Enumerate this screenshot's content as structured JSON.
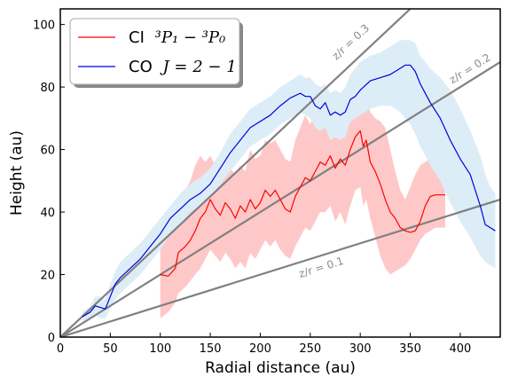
{
  "chart_data": {
    "type": "line",
    "xlabel": "Radial distance (au)",
    "ylabel": "Height (au)",
    "xlim": [
      0,
      440
    ],
    "ylim": [
      0,
      105
    ],
    "xticks": [
      0,
      50,
      100,
      150,
      200,
      250,
      300,
      350,
      400
    ],
    "yticks": [
      0,
      20,
      40,
      60,
      80,
      100
    ],
    "grid": false,
    "legend_position": "top-left",
    "series": [
      {
        "name": "CI",
        "name_math": "³P₁ − ³P₀",
        "color": "#ff0000",
        "band_color": "#ffc8c8",
        "x": [
          100,
          108,
          115,
          118,
          125,
          130,
          135,
          140,
          145,
          150,
          155,
          160,
          165,
          170,
          175,
          180,
          185,
          190,
          195,
          200,
          205,
          210,
          215,
          220,
          225,
          230,
          235,
          240,
          245,
          250,
          255,
          260,
          265,
          270,
          275,
          280,
          285,
          290,
          295,
          300,
          303,
          306,
          310,
          315,
          320,
          325,
          330,
          335,
          340,
          345,
          350,
          355,
          360,
          365,
          370,
          375,
          380,
          385
        ],
        "y": [
          20,
          19.5,
          22,
          27,
          29,
          31,
          34,
          38,
          40,
          44,
          41,
          39,
          43,
          41,
          38,
          42,
          40,
          44,
          41,
          43,
          47,
          45,
          47,
          44,
          41,
          40,
          45,
          48,
          51,
          50,
          53,
          56,
          55,
          58,
          54,
          57,
          55,
          60,
          64,
          66,
          61,
          63,
          56,
          53,
          49,
          44,
          40,
          38,
          35,
          34,
          33.5,
          34,
          37,
          42,
          45,
          45.5,
          45.5,
          45.5
        ],
        "band_low": [
          6,
          8,
          11,
          14,
          16,
          18,
          20,
          22,
          25,
          28,
          26,
          24,
          27,
          25,
          22,
          24,
          22,
          27,
          25,
          28,
          31,
          29,
          31,
          28,
          26,
          25,
          29,
          32,
          35,
          34,
          37,
          40,
          40,
          42,
          37,
          40,
          36,
          42,
          47,
          48,
          42,
          44,
          38,
          32,
          26,
          22,
          20,
          21,
          22,
          23,
          25,
          28,
          31,
          33,
          34,
          35,
          35,
          35
        ],
        "band_high": [
          33,
          32,
          35,
          41,
          47,
          50,
          55,
          58,
          56,
          58,
          55,
          52,
          56,
          54,
          52,
          55,
          53,
          60,
          57,
          58,
          63,
          62,
          63,
          60,
          57,
          56,
          63,
          67,
          71,
          68,
          72,
          72,
          70,
          76,
          72,
          75,
          74,
          80,
          83,
          84,
          79,
          80,
          72,
          70,
          69,
          67,
          60,
          53,
          47,
          44,
          48,
          52,
          55,
          56,
          57,
          57,
          57,
          57
        ]
      },
      {
        "name": "CO",
        "name_math": "J = 2 − 1",
        "color": "#0000dd",
        "band_color": "#dcedf7",
        "x": [
          22,
          30,
          35,
          40,
          45,
          50,
          55,
          60,
          70,
          80,
          90,
          100,
          110,
          120,
          130,
          140,
          150,
          160,
          170,
          180,
          190,
          200,
          210,
          220,
          230,
          240,
          245,
          250,
          255,
          260,
          265,
          270,
          275,
          280,
          285,
          290,
          295,
          300,
          310,
          320,
          330,
          340,
          345,
          350,
          355,
          360,
          370,
          380,
          390,
          400,
          410,
          420,
          425,
          430,
          435
        ],
        "y": [
          6.5,
          8,
          10,
          9.5,
          9,
          13,
          17,
          19,
          22,
          25,
          29,
          33,
          38,
          41,
          44,
          46,
          49,
          54,
          59,
          63,
          67,
          69,
          71,
          74,
          76.5,
          78,
          77,
          77,
          74,
          73,
          75,
          71,
          72,
          71,
          72,
          76,
          77,
          79,
          82,
          83,
          84,
          86,
          87,
          87,
          85,
          81,
          75,
          70,
          63,
          57,
          52,
          42,
          36,
          35,
          34
        ],
        "band_low": [
          5,
          6,
          7,
          6,
          6,
          9,
          12,
          14,
          17,
          20,
          24,
          28,
          33,
          36,
          40,
          42,
          45,
          49,
          53,
          57,
          61,
          63,
          65,
          68,
          70,
          72,
          71,
          70,
          67,
          66,
          67,
          63,
          64,
          63,
          64,
          69,
          70,
          71,
          73,
          74,
          74,
          72,
          70,
          68,
          65,
          61,
          55,
          50,
          43,
          37,
          32,
          26,
          24,
          23,
          22
        ],
        "band_high": [
          8,
          10,
          13,
          13,
          12,
          17,
          21,
          24,
          27,
          30,
          34,
          38,
          42,
          46,
          49,
          51,
          54,
          59,
          65,
          69,
          73,
          75,
          77,
          80,
          82,
          84,
          83,
          83,
          81,
          80,
          81,
          78,
          79,
          78,
          80,
          84,
          86,
          88,
          90,
          91,
          93,
          95,
          95,
          95,
          94,
          90,
          86,
          83,
          79,
          73,
          66,
          58,
          52,
          48,
          46
        ]
      }
    ],
    "reference_lines": [
      {
        "label": "z/r = 0.1",
        "slope": 0.1
      },
      {
        "label": "z/r = 0.2",
        "slope": 0.2
      },
      {
        "label": "z/r = 0.3",
        "slope": 0.3
      }
    ],
    "reference_line_color": "#808080"
  }
}
